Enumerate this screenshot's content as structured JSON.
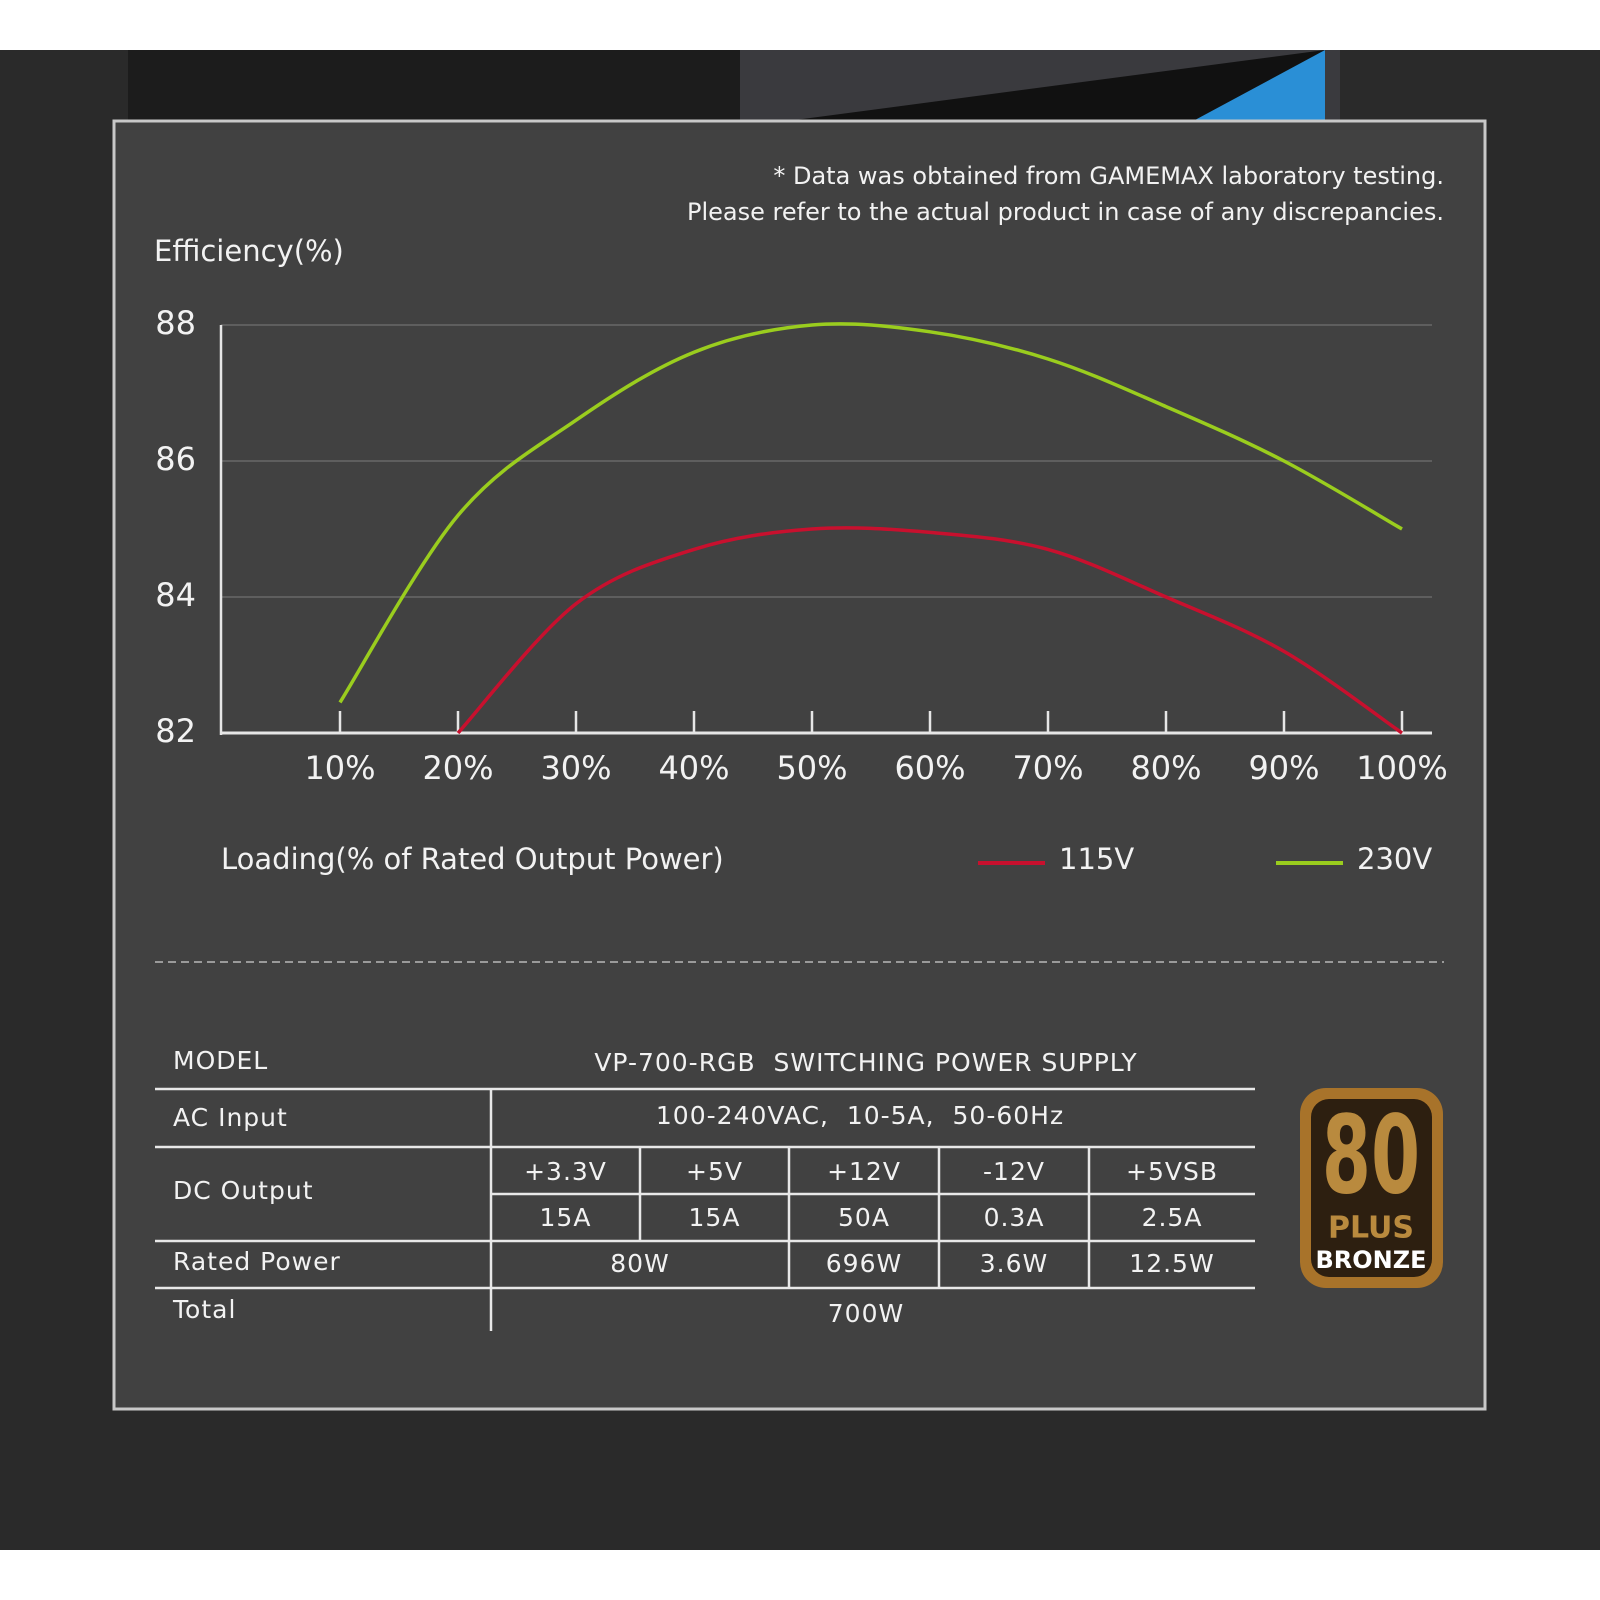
{
  "notes": [
    "* Data was obtained from GAMEMAX laboratory testing.",
    "Please refer to the actual product in case of any discrepancies."
  ],
  "chart_data": {
    "type": "line",
    "y_label": "Efficiency(%)",
    "x_label": "Loading(% of Rated Output Power)",
    "categories": [
      "10%",
      "20%",
      "30%",
      "40%",
      "50%",
      "60%",
      "70%",
      "80%",
      "90%",
      "100%"
    ],
    "series": [
      {
        "name": "115V",
        "color": "#c8102e",
        "values": [
          null,
          82,
          83.9,
          84.7,
          85,
          84.95,
          84.7,
          84,
          83.2,
          82
        ]
      },
      {
        "name": "230V",
        "color": "#9acd1e",
        "values": [
          82.45,
          85.2,
          86.6,
          87.6,
          88,
          87.9,
          87.5,
          86.8,
          86,
          85
        ]
      }
    ],
    "ylim": [
      82,
      88
    ],
    "yticks": [
      82,
      84,
      86,
      88
    ],
    "grid": true,
    "legend": "bottom-right"
  },
  "table": {
    "model": {
      "label": "MODEL",
      "value": "VP-700-RGB  SWITCHING POWER SUPPLY"
    },
    "ac_input": {
      "label": "AC Input",
      "value": "100-240VAC,  10-5A,  50-60Hz"
    },
    "dc_output": {
      "label": "DC Output",
      "voltages": [
        "+3.3V",
        "+5V",
        "+12V",
        "-12V",
        "+5VSB"
      ],
      "currents": [
        "15A",
        "15A",
        "50A",
        "0.3A",
        "2.5A"
      ]
    },
    "rated_power": {
      "label": "Rated Power",
      "values": [
        "80W",
        "696W",
        "3.6W",
        "12.5W"
      ]
    },
    "total": {
      "label": "Total",
      "value": "700W"
    }
  },
  "badge": {
    "number": "80",
    "plus": "PLUS",
    "level": "BRONZE"
  }
}
